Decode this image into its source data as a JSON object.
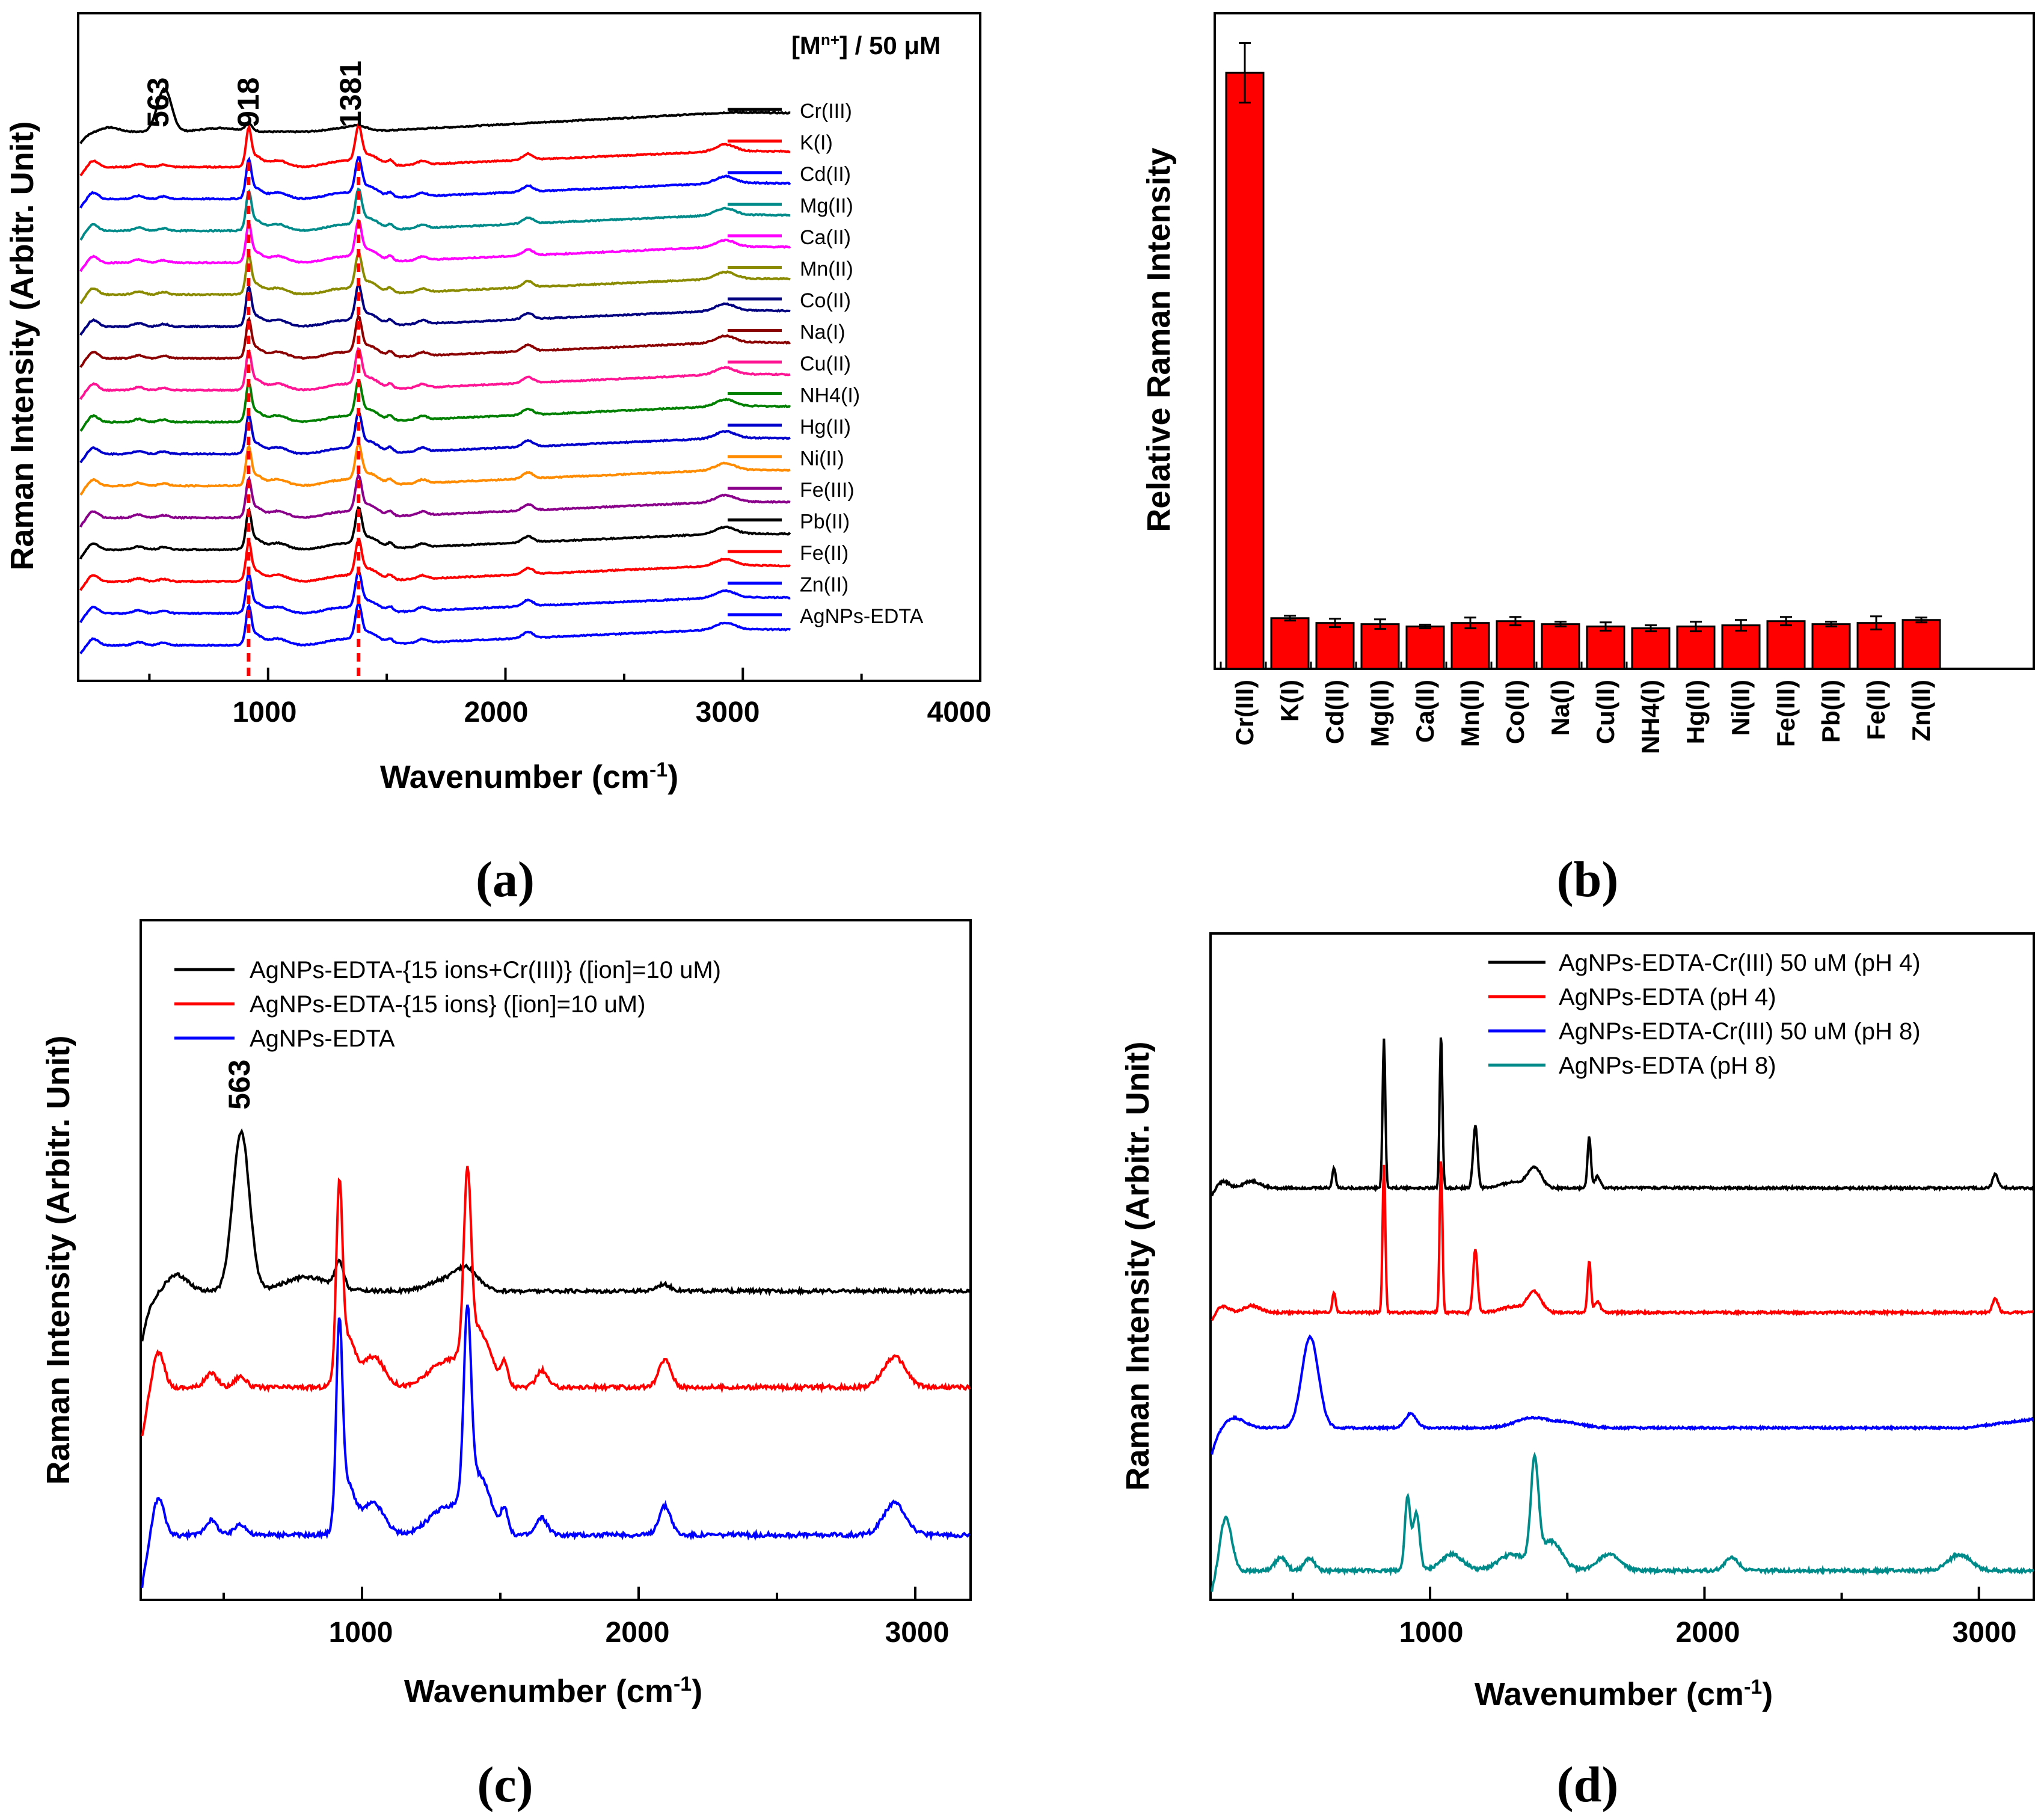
{
  "chart_data": [
    {
      "panel": "a",
      "type": "line",
      "panel_label_text": "a",
      "header": "[Mn+] / 50 μM",
      "header_base": "[M",
      "header_sup": "n+",
      "header_tail": "] / 50 μM",
      "xlabel_base": "Wavenumber (cm",
      "xlabel_sup": "-1",
      "xlabel_tail": ")",
      "ylabel": "Raman Intensity (Arbitr. Unit)",
      "xlim": [
        200,
        4000
      ],
      "xticks": [
        "1000",
        "2000",
        "3000",
        "4000"
      ],
      "peak_labels": [
        "563",
        "918",
        "1381"
      ],
      "peak_positions": [
        563,
        918,
        1381
      ],
      "series": [
        {
          "name": "Cr(III)",
          "color": "#000000"
        },
        {
          "name": "K(I)",
          "color": "#ff0000"
        },
        {
          "name": "Cd(II)",
          "color": "#0000ff"
        },
        {
          "name": "Mg(II)",
          "color": "#008b8b"
        },
        {
          "name": "Ca(II)",
          "color": "#ff00ff"
        },
        {
          "name": "Mn(II)",
          "color": "#8b8b00"
        },
        {
          "name": "Co(II)",
          "color": "#000080"
        },
        {
          "name": "Na(I)",
          "color": "#8b0000"
        },
        {
          "name": "Cu(II)",
          "color": "#ff1493"
        },
        {
          "name": "NH4(I)",
          "color": "#008000"
        },
        {
          "name": "Hg(II)",
          "color": "#0000cd"
        },
        {
          "name": "Ni(II)",
          "color": "#ff8c00"
        },
        {
          "name": "Fe(III)",
          "color": "#8b008b"
        },
        {
          "name": "Pb(II)",
          "color": "#000000"
        },
        {
          "name": "Fe(II)",
          "color": "#ff0000"
        },
        {
          "name": "Zn(II)",
          "color": "#0000ff"
        },
        {
          "name": "AgNPs-EDTA",
          "color": "#0000ff"
        }
      ]
    },
    {
      "panel": "b",
      "type": "bar",
      "panel_label_text": "b",
      "ylabel": "Relative Raman Intensity",
      "bar_color": "#ff0000",
      "categories": [
        "Cr(III)",
        "K(I)",
        "Cd(II)",
        "Mg(II)",
        "Ca(II)",
        "Mn(II)",
        "Co(II)",
        "Na(I)",
        "Cu(II)",
        "NH4(I)",
        "Hg(II)",
        "Ni(II)",
        "Fe(III)",
        "Pb(II)",
        "Fe(II)",
        "Zn(II)"
      ],
      "values": [
        1.0,
        0.085,
        0.077,
        0.075,
        0.071,
        0.077,
        0.08,
        0.075,
        0.071,
        0.068,
        0.071,
        0.073,
        0.08,
        0.075,
        0.077,
        0.082
      ],
      "errors": [
        0.05,
        0.004,
        0.007,
        0.008,
        0.003,
        0.009,
        0.007,
        0.004,
        0.007,
        0.005,
        0.008,
        0.009,
        0.007,
        0.004,
        0.011,
        0.004
      ],
      "ylim": [
        0,
        1.1
      ]
    },
    {
      "panel": "c",
      "type": "line",
      "panel_label_text": "c",
      "xlabel_base": "Wavenumber (cm",
      "xlabel_sup": "-1",
      "xlabel_tail": ")",
      "ylabel": "Raman Intensity (Arbitr. Unit)",
      "xlim": [
        200,
        3200
      ],
      "xticks": [
        "1000",
        "2000",
        "3000"
      ],
      "peak_labels": [
        "563"
      ],
      "peak_positions": [
        563
      ],
      "series": [
        {
          "name": "AgNPs-EDTA-{15 ions+Cr(III)} ([ion]=10 uM)",
          "color": "#000000"
        },
        {
          "name": "AgNPs-EDTA-{15 ions} ([ion]=10 uM)",
          "color": "#ff0000"
        },
        {
          "name": "AgNPs-EDTA",
          "color": "#0000ff"
        }
      ]
    },
    {
      "panel": "d",
      "type": "line",
      "panel_label_text": "d",
      "xlabel_base": "Wavenumber (cm",
      "xlabel_sup": "-1",
      "xlabel_tail": ")",
      "ylabel": "Raman Intensity (Arbitr. Unit)",
      "xlim": [
        200,
        3200
      ],
      "xticks": [
        "1000",
        "2000",
        "3000"
      ],
      "series": [
        {
          "name": "AgNPs-EDTA-Cr(III) 50 uM (pH 4)",
          "color": "#000000"
        },
        {
          "name": "AgNPs-EDTA (pH 4)",
          "color": "#ff0000"
        },
        {
          "name": "AgNPs-EDTA-Cr(III) 50 uM (pH 8)",
          "color": "#0000ff"
        },
        {
          "name": "AgNPs-EDTA (pH 8)",
          "color": "#008b8b"
        }
      ]
    }
  ]
}
